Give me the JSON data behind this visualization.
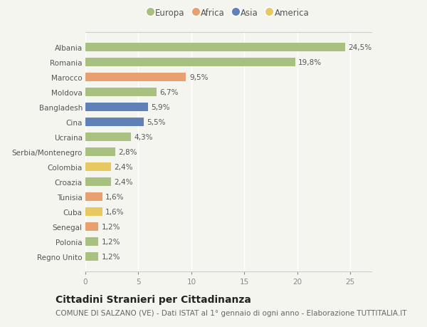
{
  "categories": [
    "Albania",
    "Romania",
    "Marocco",
    "Moldova",
    "Bangladesh",
    "Cina",
    "Ucraina",
    "Serbia/Montenegro",
    "Colombia",
    "Croazia",
    "Tunisia",
    "Cuba",
    "Senegal",
    "Polonia",
    "Regno Unito"
  ],
  "values": [
    24.5,
    19.8,
    9.5,
    6.7,
    5.9,
    5.5,
    4.3,
    2.8,
    2.4,
    2.4,
    1.6,
    1.6,
    1.2,
    1.2,
    1.2
  ],
  "labels": [
    "24,5%",
    "19,8%",
    "9,5%",
    "6,7%",
    "5,9%",
    "5,5%",
    "4,3%",
    "2,8%",
    "2,4%",
    "2,4%",
    "1,6%",
    "1,6%",
    "1,2%",
    "1,2%",
    "1,2%"
  ],
  "continents": [
    "Europa",
    "Europa",
    "Africa",
    "Europa",
    "Asia",
    "Asia",
    "Europa",
    "Europa",
    "America",
    "Europa",
    "Africa",
    "America",
    "Africa",
    "Europa",
    "Europa"
  ],
  "colors": {
    "Europa": "#a8c080",
    "Africa": "#e8a070",
    "Asia": "#6080b8",
    "America": "#e8c860"
  },
  "legend_order": [
    "Europa",
    "Africa",
    "Asia",
    "America"
  ],
  "xlim": [
    0,
    27
  ],
  "xticks": [
    0,
    5,
    10,
    15,
    20,
    25
  ],
  "title": "Cittadini Stranieri per Cittadinanza",
  "subtitle": "COMUNE DI SALZANO (VE) - Dati ISTAT al 1° gennaio di ogni anno - Elaborazione TUTTITALIA.IT",
  "background_color": "#f5f5f0",
  "grid_color": "#ffffff",
  "bar_height": 0.55,
  "label_fontsize": 7.5,
  "tick_fontsize": 7.5,
  "title_fontsize": 10,
  "subtitle_fontsize": 7.5
}
